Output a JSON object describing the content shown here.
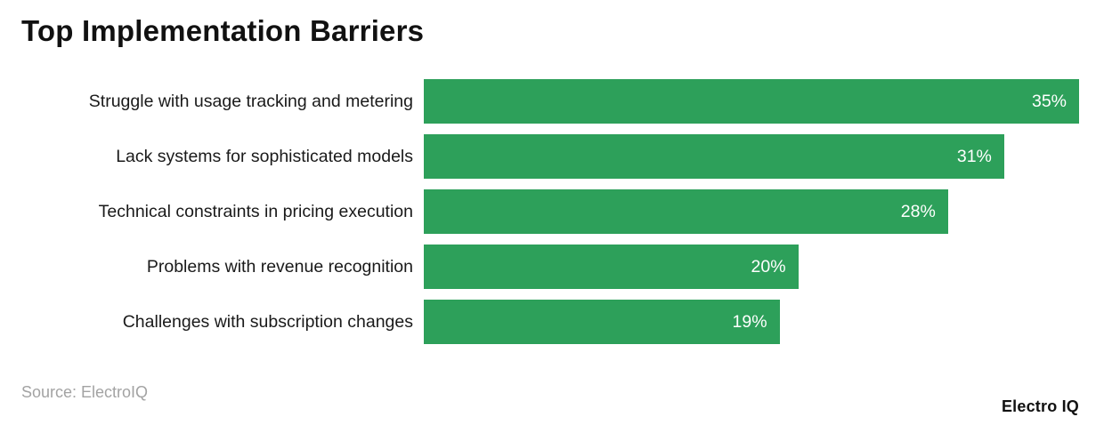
{
  "title": "Top Implementation Barriers",
  "source": "Source: ElectroIQ",
  "brand": "Electro IQ",
  "colors": {
    "bar": "#2da05a",
    "bar_label": "#ffffff",
    "title": "#111111",
    "source": "#a3a3a3"
  },
  "chart_data": {
    "type": "bar",
    "orientation": "horizontal",
    "title": "Top Implementation Barriers",
    "categories": [
      "Struggle with usage tracking and metering",
      "Lack systems for sophisticated models",
      "Technical constraints in pricing execution",
      "Problems with revenue recognition",
      "Challenges with subscription changes"
    ],
    "values": [
      35,
      31,
      28,
      20,
      19
    ],
    "value_labels": [
      "35%",
      "31%",
      "28%",
      "20%",
      "19%"
    ],
    "xlabel": "",
    "ylabel": "",
    "xlim": [
      0,
      35
    ],
    "grid": false,
    "legend": false
  }
}
